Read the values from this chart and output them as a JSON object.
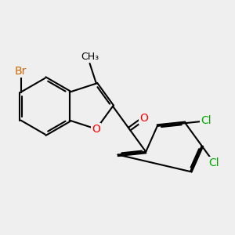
{
  "background_color": "#efefef",
  "bond_color": "#000000",
  "bond_width": 1.5,
  "atom_colors": {
    "Br": "#cc6600",
    "O": "#ff0000",
    "Cl": "#00aa00"
  },
  "font_size_heavy": 10,
  "font_size_methyl": 9
}
